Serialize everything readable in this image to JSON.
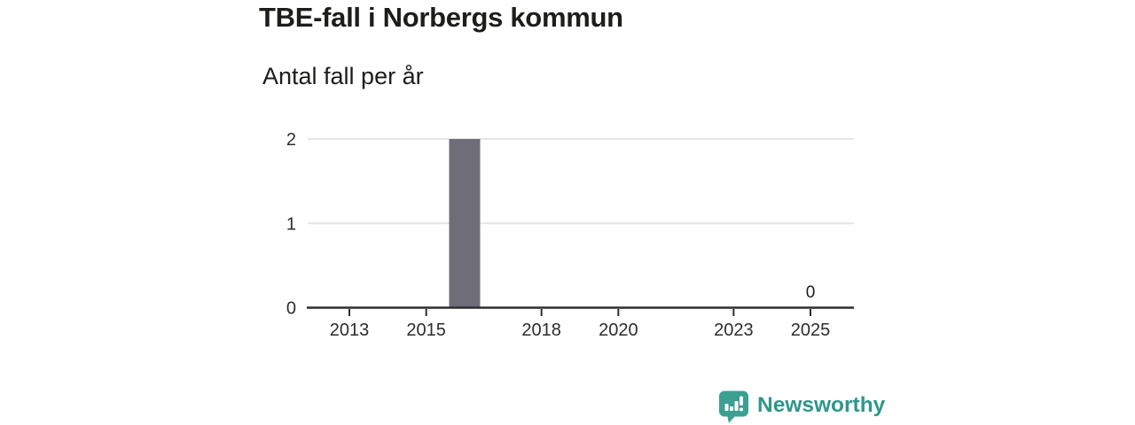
{
  "header": {
    "title": "TBE-fall i Norbergs kommun",
    "subtitle": "Antal fall per år"
  },
  "chart_data": {
    "type": "bar",
    "title": "TBE-fall i Norbergs kommun",
    "subtitle": "Antal fall per år",
    "x": [
      2012,
      2013,
      2014,
      2015,
      2016,
      2017,
      2018,
      2019,
      2020,
      2021,
      2022,
      2023,
      2024,
      2025
    ],
    "values": [
      0,
      0,
      0,
      0,
      2,
      0,
      0,
      0,
      0,
      0,
      0,
      0,
      0,
      0
    ],
    "x_ticks": [
      2013,
      2015,
      2018,
      2020,
      2023,
      2025
    ],
    "y_ticks": [
      0,
      1,
      2
    ],
    "ylim": [
      0,
      2
    ],
    "xlim": [
      2011.9,
      2026.1
    ],
    "grid": true,
    "legend": "none",
    "annotations": [
      {
        "x": 2025,
        "value": 0,
        "text": "0",
        "position": "above-axis"
      }
    ]
  },
  "colors": {
    "background": "#ffffff",
    "bar": "#6f6d77",
    "axis": "#2e2e2e",
    "grid": "#e5e5e5",
    "tick_text": "#2d2d2d",
    "title_text": "#1d1d1b",
    "annotation_text": "#1d1d1b"
  },
  "footer": {
    "brand": "Newsworthy",
    "brand_color": "#2f968c",
    "logo_color": "#3ba092",
    "logo_icon": "newsworthy-chart-bubble-icon"
  }
}
